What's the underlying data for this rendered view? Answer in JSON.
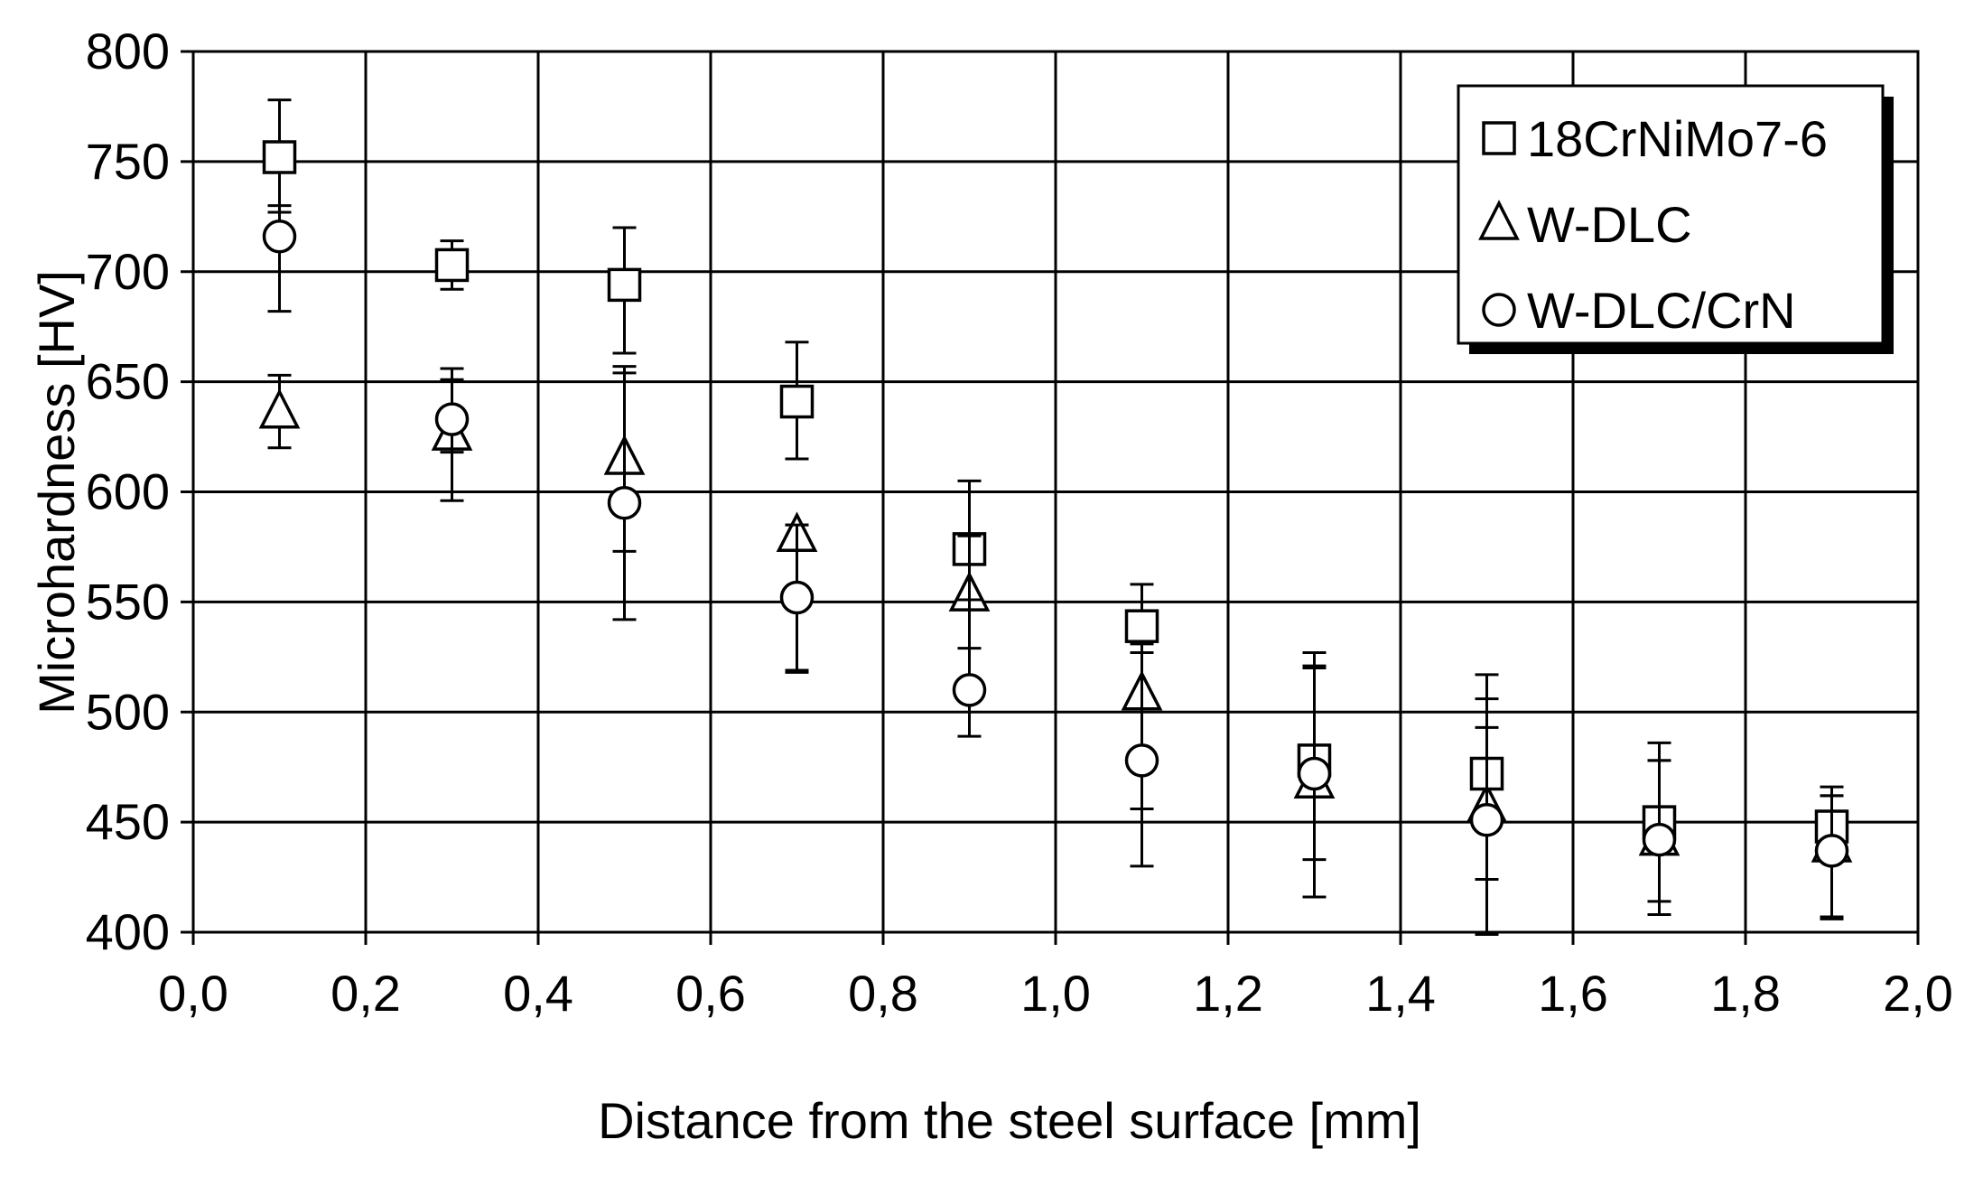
{
  "chart_data": {
    "type": "scatter",
    "title": "",
    "xlabel": "Distance from the steel surface [mm]",
    "ylabel": "Microhardness [HV]",
    "xlim": [
      0,
      2.0
    ],
    "ylim": [
      400,
      800
    ],
    "x_ticks": [
      "0,0",
      "0,2",
      "0,4",
      "0,6",
      "0,8",
      "1,0",
      "1,2",
      "1,4",
      "1,6",
      "1,8",
      "2,0"
    ],
    "y_ticks": [
      "400",
      "450",
      "500",
      "550",
      "600",
      "650",
      "700",
      "750",
      "800"
    ],
    "grid": true,
    "legend_position": "top-right",
    "series": [
      {
        "name": "18CrNiMo7-6",
        "marker": "square",
        "x": [
          0.1,
          0.3,
          0.5,
          0.7,
          0.9,
          1.1,
          1.3,
          1.5,
          1.7,
          1.9
        ],
        "y": [
          752,
          703,
          694,
          641,
          574,
          539,
          478,
          472,
          450,
          448
        ],
        "err_low": [
          727,
          692,
          663,
          615,
          551,
          527,
          433,
          424,
          414,
          432
        ],
        "err_high": [
          778,
          714,
          720,
          668,
          605,
          558,
          527,
          517,
          486,
          466
        ]
      },
      {
        "name": "W-DLC",
        "marker": "triangle",
        "x": [
          0.1,
          0.3,
          0.5,
          0.7,
          0.9,
          1.1,
          1.3,
          1.5,
          1.7,
          1.9
        ],
        "y": [
          636,
          626,
          615,
          580,
          553,
          508,
          468,
          457,
          442,
          439
        ],
        "err_low": [
          620,
          618,
          573,
          519,
          529,
          456,
          416,
          400,
          408,
          407
        ],
        "err_high": [
          653,
          651,
          657,
          585,
          580,
          531,
          521,
          506,
          478,
          462
        ]
      },
      {
        "name": "W-DLC/CrN",
        "marker": "circle",
        "x": [
          0.1,
          0.3,
          0.5,
          0.7,
          0.9,
          1.1,
          1.3,
          1.5,
          1.7,
          1.9
        ],
        "y": [
          716,
          633,
          595,
          552,
          510,
          478,
          472,
          451,
          442,
          437
        ],
        "err_low": [
          682,
          596,
          542,
          518,
          489,
          430,
          416,
          399,
          408,
          406
        ],
        "err_high": [
          730,
          656,
          654,
          585,
          580,
          531,
          520,
          493,
          478,
          462
        ]
      }
    ]
  }
}
